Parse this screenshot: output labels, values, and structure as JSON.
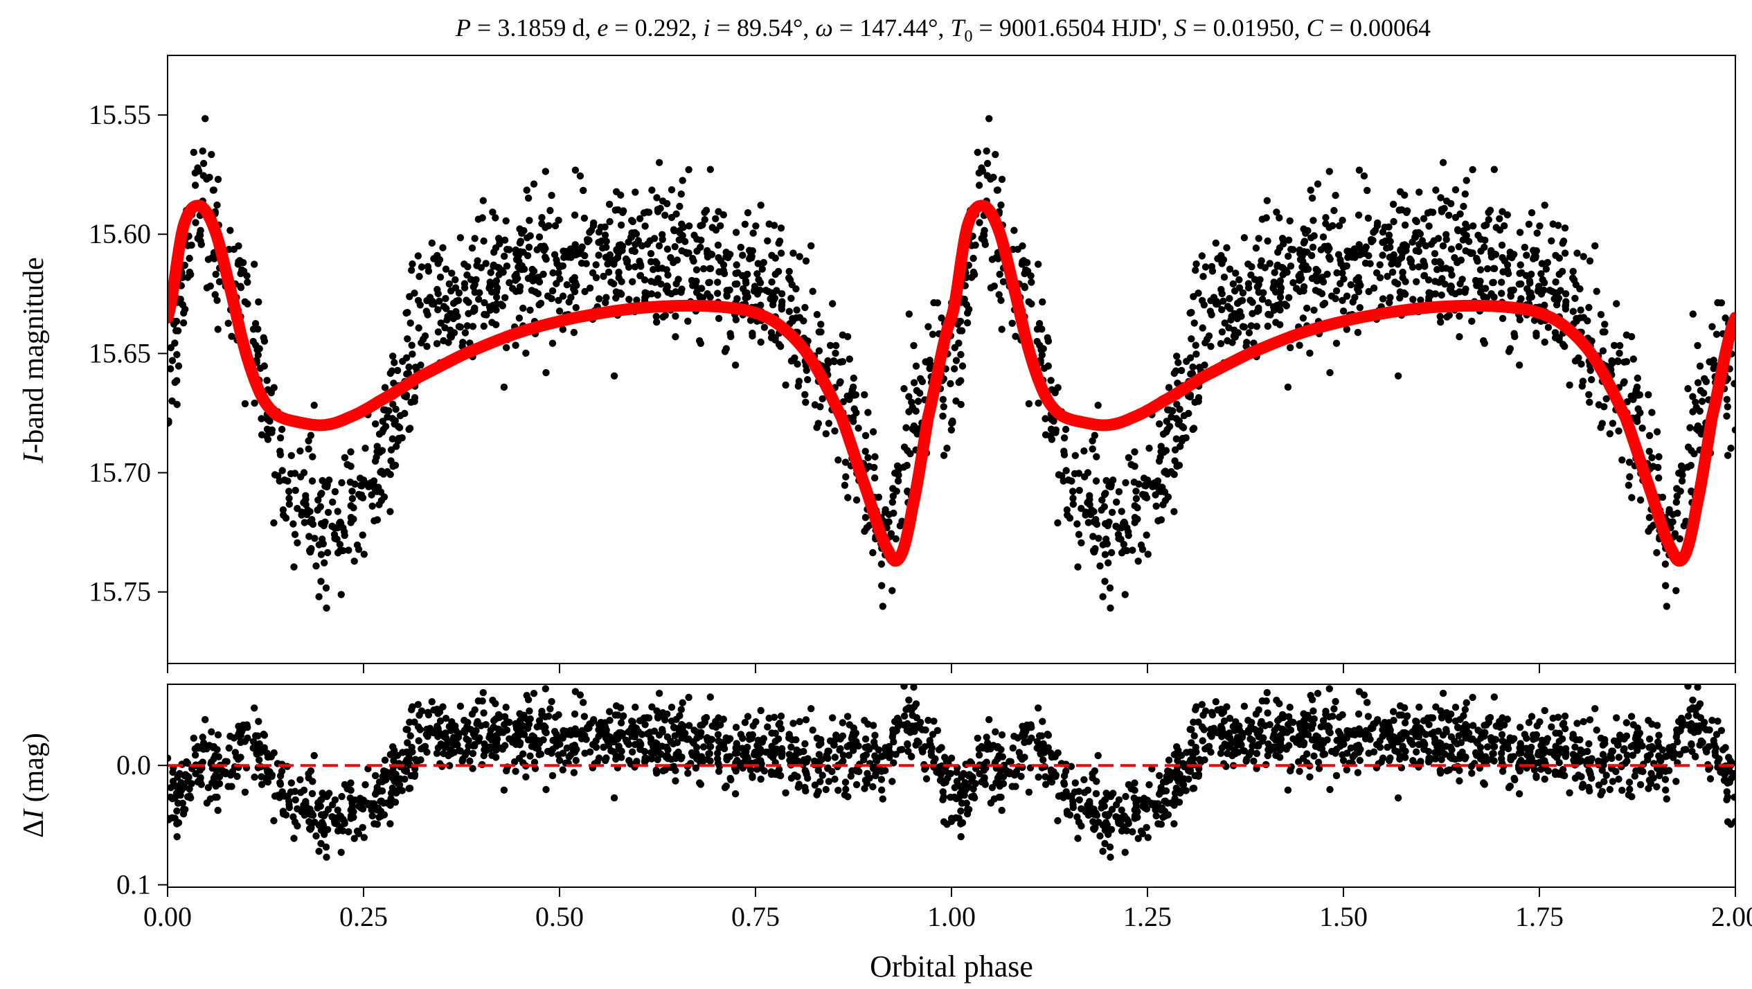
{
  "title_parts": {
    "P_sym": "P",
    "P_val": " = 3.1859 d, ",
    "e_sym": "e",
    "e_val": " = 0.292, ",
    "i_sym": "i",
    "i_val": " = 89.54°, ",
    "w_sym": "ω",
    "w_val": " = 147.44°, ",
    "T_sym": "T",
    "T_sub": "0",
    "T_val": " = 9001.6504 HJD', ",
    "S_sym": "S",
    "S_val": " = 0.01950, ",
    "C_sym": "C",
    "C_val": " = 0.00064"
  },
  "colors": {
    "points": "#000000",
    "model": "#ff0000",
    "zero_line": "#ff0000"
  },
  "chart_data": [
    {
      "type": "scatter",
      "panel": "top",
      "ylabel_italic": "I",
      "ylabel_rest": "-band magnitude",
      "xlim": [
        0.0,
        2.0
      ],
      "ylim": [
        15.78,
        15.525
      ],
      "inverted_y": true,
      "yticks": [
        15.55,
        15.6,
        15.65,
        15.7,
        15.75
      ],
      "ytick_labels": [
        "15.55",
        "15.60",
        "15.65",
        "15.70",
        "15.75"
      ],
      "xticks": [
        0.0,
        0.25,
        0.5,
        0.75,
        1.0,
        1.25,
        1.5,
        1.75,
        2.0
      ],
      "series": [
        {
          "name": "observations",
          "kind": "points",
          "approx_count_per_cycle": 1300,
          "template_phase": [
            0.0,
            0.04,
            0.1,
            0.16,
            0.22,
            0.27,
            0.32,
            0.45,
            0.62,
            0.78,
            0.86,
            0.92,
            0.97,
            1.0
          ],
          "template_mag": [
            15.66,
            15.585,
            15.63,
            15.71,
            15.725,
            15.7,
            15.64,
            15.615,
            15.605,
            15.625,
            15.67,
            15.725,
            15.66,
            15.66
          ],
          "scatter_mag": 0.02
        },
        {
          "name": "model fit",
          "kind": "line",
          "x": [
            0.0,
            0.02,
            0.04,
            0.06,
            0.08,
            0.1,
            0.12,
            0.14,
            0.17,
            0.2,
            0.23,
            0.27,
            0.32,
            0.38,
            0.45,
            0.52,
            0.6,
            0.68,
            0.74,
            0.78,
            0.82,
            0.86,
            0.89,
            0.92,
            0.935,
            0.95,
            0.97,
            1.0
          ],
          "y": [
            15.635,
            15.597,
            15.588,
            15.598,
            15.623,
            15.65,
            15.668,
            15.676,
            15.679,
            15.68,
            15.677,
            15.67,
            15.66,
            15.65,
            15.641,
            15.635,
            15.631,
            15.63,
            15.632,
            15.638,
            15.652,
            15.677,
            15.706,
            15.733,
            15.735,
            15.715,
            15.677,
            15.635
          ]
        }
      ]
    },
    {
      "type": "scatter",
      "panel": "bottom",
      "ylabel_delta": "Δ",
      "ylabel_italic": "I",
      "ylabel_rest": " (mag)",
      "xlabel": "Orbital phase",
      "xlim": [
        0.0,
        2.0
      ],
      "ylim": [
        0.102,
        -0.068
      ],
      "inverted_y": true,
      "yticks": [
        0.0,
        0.1
      ],
      "ytick_labels": [
        "0.0",
        "0.1"
      ],
      "xticks": [
        0.0,
        0.25,
        0.5,
        0.75,
        1.0,
        1.25,
        1.5,
        1.75,
        2.0
      ],
      "xtick_labels": [
        "0.00",
        "0.25",
        "0.50",
        "0.75",
        "1.00",
        "1.25",
        "1.50",
        "1.75",
        "2.00"
      ],
      "series": [
        {
          "name": "residuals",
          "kind": "points",
          "dip_center_phase": 0.22,
          "dip_depth_mag": 0.045,
          "scatter_mag": 0.018
        },
        {
          "name": "zero line",
          "kind": "dashed_line",
          "y": 0.0
        }
      ]
    }
  ]
}
